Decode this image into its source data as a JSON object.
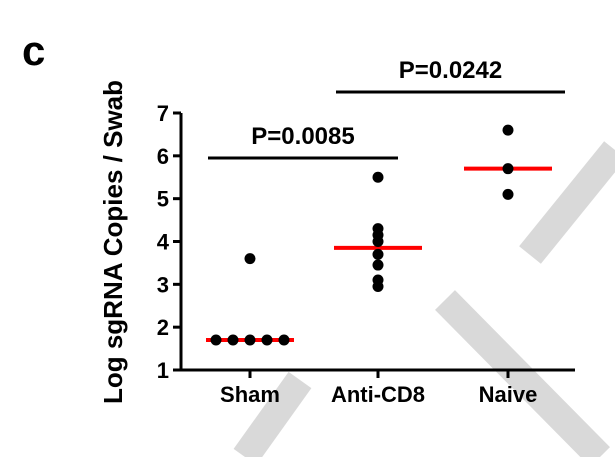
{
  "panel_label": "c",
  "chart_data": {
    "type": "scatter",
    "title": "",
    "xlabel": "",
    "ylabel": "Log sgRNA Copies / Swab",
    "ylim": [
      1,
      7
    ],
    "yticks": [
      "1",
      "2",
      "3",
      "4",
      "5",
      "6",
      "7"
    ],
    "categories": [
      "Sham",
      "Anti-CD8",
      "Naive"
    ],
    "groups": [
      {
        "name": "Sham",
        "values": [
          3.6,
          1.7,
          1.7,
          1.7,
          1.7,
          1.7
        ],
        "median": 1.7
      },
      {
        "name": "Anti-CD8",
        "values": [
          5.5,
          4.3,
          4.15,
          4.0,
          3.7,
          3.45,
          3.1,
          2.95
        ],
        "median": 3.85
      },
      {
        "name": "Naive",
        "values": [
          6.6,
          5.7,
          5.1
        ],
        "median": 5.7
      }
    ],
    "comparisons": [
      {
        "from": "Sham",
        "to": "Anti-CD8",
        "label": "P=0.0085"
      },
      {
        "from": "Anti-CD8",
        "to": "Naive",
        "label": "P=0.0242"
      }
    ],
    "median_color": "#ff0000",
    "point_color": "#000000",
    "grid": false,
    "legend": "none"
  }
}
